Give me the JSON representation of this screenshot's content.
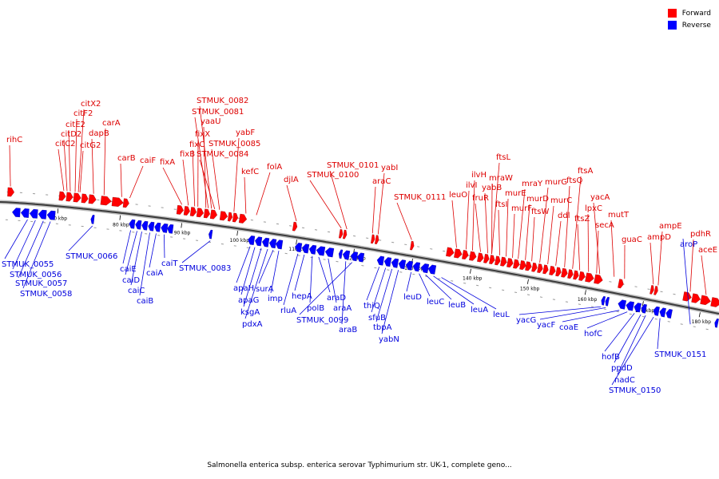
{
  "legend": {
    "forward_label": "Forward",
    "reverse_label": "Reverse",
    "forward_color": "#ff0000",
    "reverse_color": "#0000ff"
  },
  "caption": "Salmonella enterica subsp. enterica serovar Typhimurium str. UK-1, complete geno...",
  "ticks": [
    "70 kbp",
    "80 kbp",
    "90 kbp",
    "100 kbp",
    "110 kbp",
    "120 kbp",
    "130 kbp",
    "140 kbp",
    "150 kbp",
    "160 kbp",
    "170 kbp",
    "180 kbp"
  ],
  "forward_genes": [
    "rihC",
    "citC2",
    "citD2",
    "citE2",
    "citF2",
    "citX2",
    "citG2",
    "dapB",
    "carA",
    "carB",
    "caiF",
    "fixA",
    "fixB",
    "fixC",
    "fixX",
    "yaaU",
    "STMUK_0081",
    "STMUK_0082",
    "STMUK_0084",
    "STMUK_0085",
    "yabF",
    "kefC",
    "folA",
    "djlA",
    "STMUK_0100",
    "STMUK_0101",
    "araC",
    "yabI",
    "STMUK_0111",
    "leuO",
    "ilvI",
    "ilvH",
    "fruR",
    "yabB",
    "mraW",
    "ftsL",
    "ftsI",
    "murE",
    "murF",
    "mraY",
    "murD",
    "ftsW",
    "murG",
    "murC",
    "ddl",
    "ftsQ",
    "ftsA",
    "ftsZ",
    "lpxC",
    "secA",
    "yacA",
    "mutT",
    "guaC",
    "ampD",
    "ampE",
    "pdhR",
    "aceE"
  ],
  "reverse_genes": [
    "STMUK_0055",
    "STMUK_0056",
    "STMUK_0057",
    "STMUK_0058",
    "STMUK_0066",
    "caiE",
    "caiD",
    "caiC",
    "caiB",
    "caiA",
    "caiT",
    "STMUK_0083",
    "apaH",
    "apaG",
    "ksgA",
    "pdxA",
    "surA",
    "imp",
    "rluA",
    "hepA",
    "polB",
    "araD",
    "araA",
    "araB",
    "STMUK_0099",
    "thiQ",
    "sfuB",
    "tbpA",
    "yabN",
    "leuD",
    "leuC",
    "leuB",
    "leuA",
    "leuL",
    "yacG",
    "yacF",
    "coaE",
    "hofC",
    "hofB",
    "ppdD",
    "nadC",
    "STMUK_0150",
    "STMUK_0151",
    "aroP"
  ]
}
